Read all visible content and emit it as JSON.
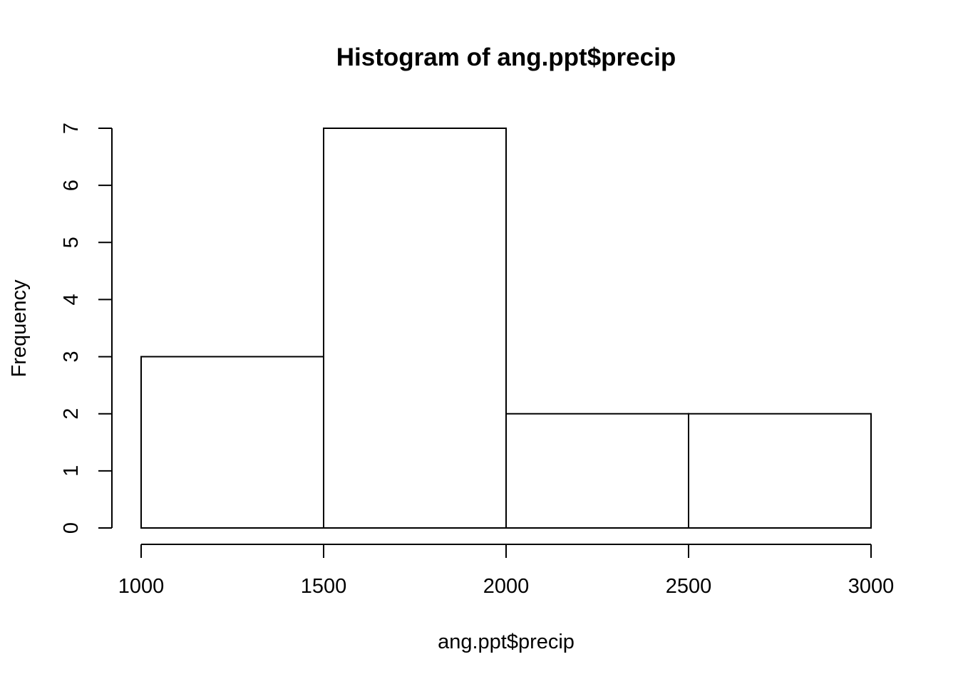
{
  "chart_data": {
    "type": "bar",
    "subtype": "histogram",
    "title": "Histogram of ang.ppt$precip",
    "xlabel": "ang.ppt$precip",
    "ylabel": "Frequency",
    "bins": [
      {
        "from": 1000,
        "to": 1500,
        "count": 3
      },
      {
        "from": 1500,
        "to": 2000,
        "count": 7
      },
      {
        "from": 2000,
        "to": 2500,
        "count": 2
      },
      {
        "from": 2500,
        "to": 3000,
        "count": 2
      }
    ],
    "x_ticks": [
      1000,
      1500,
      2000,
      2500,
      3000
    ],
    "y_ticks": [
      0,
      1,
      2,
      3,
      4,
      5,
      6,
      7
    ],
    "xlim": [
      1000,
      3000
    ],
    "ylim": [
      0,
      7
    ],
    "grid": false,
    "legend": "none",
    "bar_fill": "#ffffff",
    "bar_stroke": "#000000"
  }
}
